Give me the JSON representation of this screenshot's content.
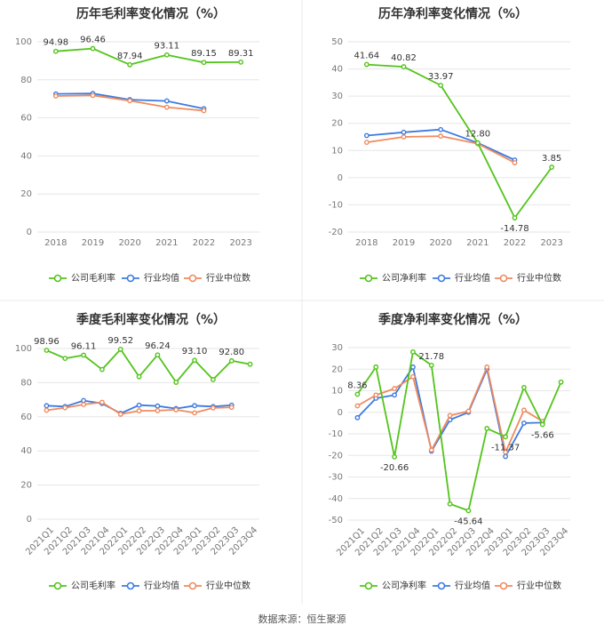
{
  "source": "数据来源：恒生聚源",
  "colors": {
    "company": "#52c41a",
    "industry_avg": "#3d7be0",
    "industry_median": "#f08a5d"
  },
  "chart_data": [
    {
      "id": "annual-gross",
      "type": "line",
      "title": "历年毛利率变化情况（%）",
      "categories": [
        "2018",
        "2019",
        "2020",
        "2021",
        "2022",
        "2023"
      ],
      "ylim": [
        0,
        100
      ],
      "yticks": [
        0,
        20,
        40,
        60,
        80,
        100
      ],
      "grid": true,
      "legend_position": "bottom",
      "series": [
        {
          "name": "公司毛利率",
          "key": "company",
          "values": [
            94.98,
            96.46,
            87.94,
            93.11,
            89.15,
            89.31
          ],
          "labels": [
            "94.98",
            "96.46",
            "87.94",
            "93.11",
            "89.15",
            "89.31"
          ]
        },
        {
          "name": "行业均值",
          "key": "industry_avg",
          "values": [
            72.6,
            72.8,
            69.6,
            68.9,
            64.8,
            null
          ]
        },
        {
          "name": "行业中位数",
          "key": "industry_median",
          "values": [
            71.5,
            71.8,
            69.0,
            65.6,
            63.8,
            null
          ]
        }
      ]
    },
    {
      "id": "annual-net",
      "type": "line",
      "title": "历年净利率变化情况（%）",
      "categories": [
        "2018",
        "2019",
        "2020",
        "2021",
        "2022",
        "2023"
      ],
      "ylim": [
        -20,
        50
      ],
      "yticks": [
        -20,
        -10,
        0,
        10,
        20,
        30,
        40,
        50
      ],
      "grid": true,
      "legend_position": "bottom",
      "series": [
        {
          "name": "公司净利率",
          "key": "company",
          "values": [
            41.64,
            40.82,
            33.97,
            12.8,
            -14.78,
            3.85
          ],
          "labels": [
            "41.64",
            "40.82",
            "33.97",
            "12.80",
            "-14.78",
            "3.85"
          ]
        },
        {
          "name": "行业均值",
          "key": "industry_avg",
          "values": [
            15.5,
            16.7,
            17.7,
            12.8,
            6.5,
            null
          ]
        },
        {
          "name": "行业中位数",
          "key": "industry_median",
          "values": [
            13.0,
            15.0,
            15.3,
            12.5,
            5.5,
            null
          ]
        }
      ]
    },
    {
      "id": "quarterly-gross",
      "type": "line",
      "title": "季度毛利率变化情况（%）",
      "categories": [
        "2021Q1",
        "2021Q2",
        "2021Q3",
        "2021Q4",
        "2022Q1",
        "2022Q2",
        "2022Q3",
        "2022Q4",
        "2023Q1",
        "2023Q2",
        "2023Q3",
        "2023Q4"
      ],
      "ylim": [
        0,
        100
      ],
      "yticks": [
        0,
        20,
        40,
        60,
        80,
        100
      ],
      "grid": true,
      "legend_position": "bottom",
      "series": [
        {
          "name": "公司毛利率",
          "key": "company",
          "values": [
            98.96,
            94.2,
            96.11,
            87.7,
            99.52,
            83.5,
            96.24,
            80.2,
            93.1,
            81.8,
            92.8,
            90.8
          ],
          "labels": [
            "98.96",
            "",
            "96.11",
            "",
            "99.52",
            "",
            "96.24",
            "",
            "93.10",
            "",
            "92.80",
            ""
          ]
        },
        {
          "name": "行业均值",
          "key": "industry_avg",
          "values": [
            66.5,
            66.0,
            69.5,
            67.8,
            62.0,
            66.8,
            66.3,
            64.8,
            66.5,
            66.0,
            66.8,
            null
          ]
        },
        {
          "name": "行业中位数",
          "key": "industry_median",
          "values": [
            63.8,
            65.3,
            67.2,
            68.5,
            61.5,
            63.5,
            63.6,
            64.1,
            62.3,
            65.2,
            65.5,
            null
          ]
        }
      ]
    },
    {
      "id": "quarterly-net",
      "type": "line",
      "title": "季度净利率变化情况（%）",
      "categories": [
        "2021Q1",
        "2021Q2",
        "2021Q3",
        "2021Q4",
        "2022Q1",
        "2022Q2",
        "2022Q3",
        "2022Q4",
        "2023Q1",
        "2023Q2",
        "2023Q3",
        "2023Q4"
      ],
      "ylim": [
        -50,
        30
      ],
      "yticks": [
        -50,
        -40,
        -30,
        -20,
        -10,
        0,
        10,
        20,
        30
      ],
      "grid": true,
      "legend_position": "bottom",
      "series": [
        {
          "name": "公司净利率",
          "key": "company",
          "values": [
            8.36,
            21.0,
            -20.66,
            28.0,
            21.78,
            -42.5,
            -45.64,
            -7.5,
            -11.37,
            11.5,
            -5.66,
            14.0
          ],
          "labels": [
            "8.36",
            "",
            "-20.66",
            "",
            "21.78",
            "",
            "-45.64",
            "",
            "-11.37",
            "",
            "-5.66",
            ""
          ]
        },
        {
          "name": "行业均值",
          "key": "industry_avg",
          "values": [
            -2.5,
            6.5,
            8.0,
            21.0,
            -18.0,
            -3.5,
            0.0,
            20.0,
            -20.5,
            -5.0,
            -4.8,
            null
          ]
        },
        {
          "name": "行业中位数",
          "key": "industry_median",
          "values": [
            3.0,
            8.0,
            11.0,
            16.5,
            -17.5,
            -1.5,
            0.5,
            21.0,
            -18.5,
            1.0,
            -4.2,
            null
          ]
        }
      ]
    }
  ]
}
